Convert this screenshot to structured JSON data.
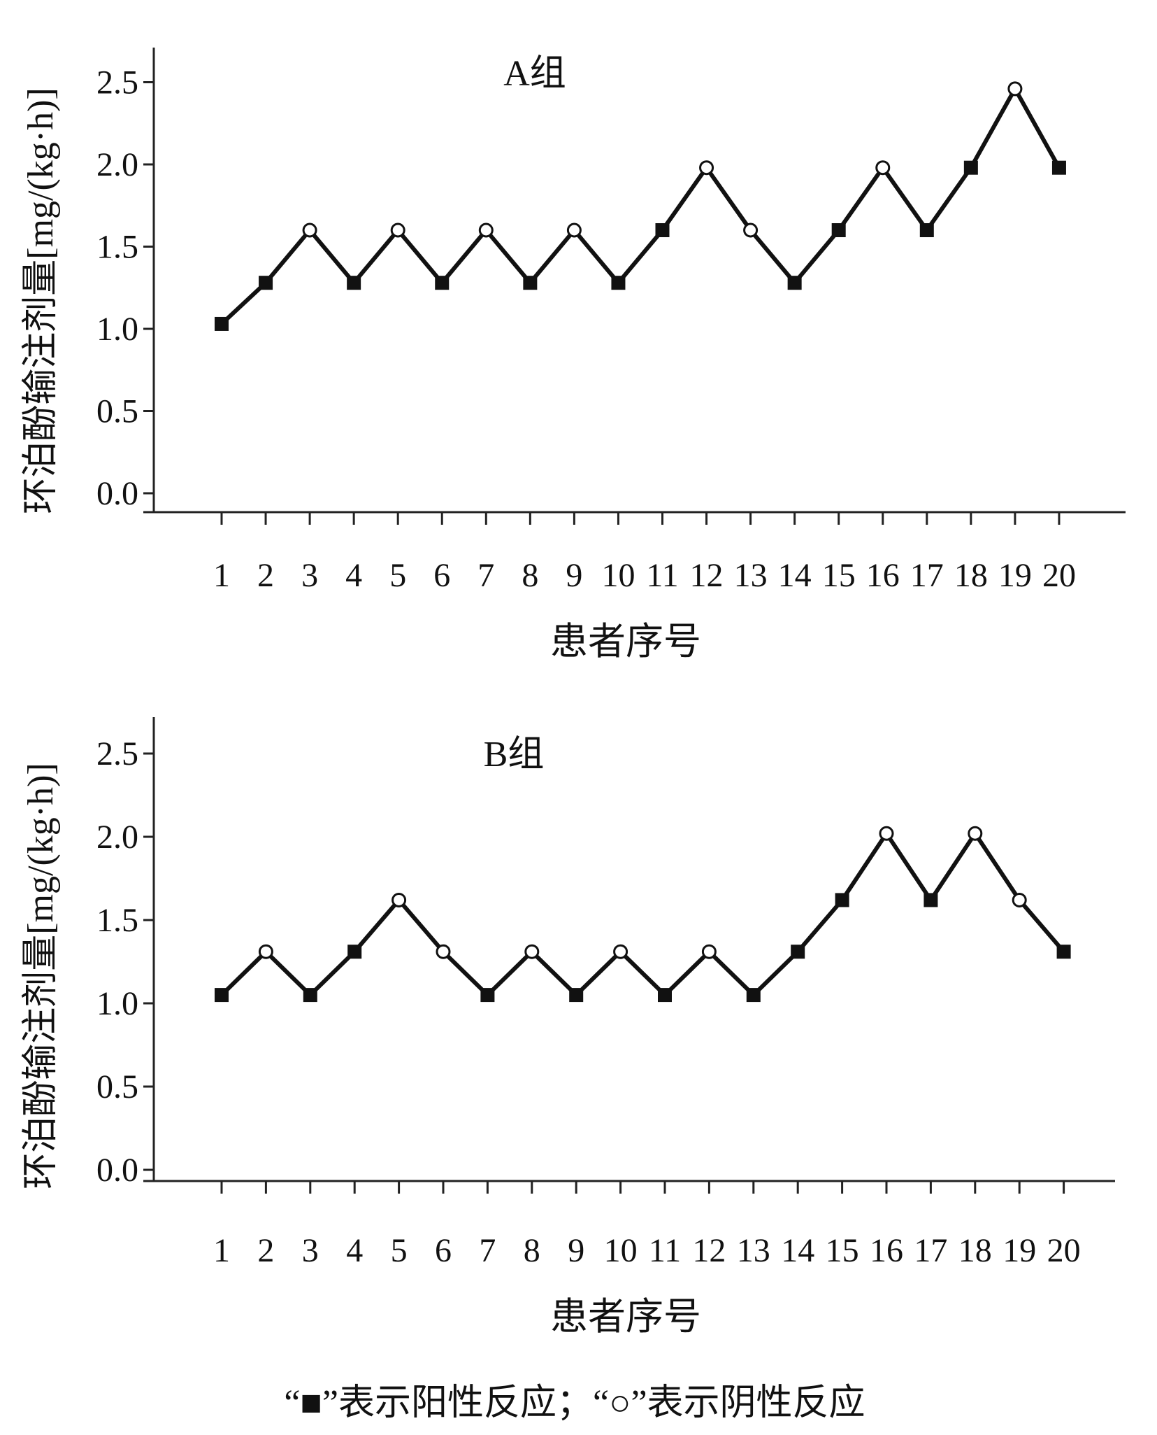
{
  "chart_data": [
    {
      "type": "line",
      "title": "A组",
      "xlabel": "患者序号",
      "ylabel": "环泊酚输注剂量[mg/(kg·h)]",
      "categories": [
        "1",
        "2",
        "3",
        "4",
        "5",
        "6",
        "7",
        "8",
        "9",
        "10",
        "11",
        "12",
        "13",
        "14",
        "15",
        "16",
        "17",
        "18",
        "19",
        "20"
      ],
      "yticks": [
        "0.0",
        "0.5",
        "1.0",
        "1.5",
        "2.0",
        "2.5"
      ],
      "ylim": [
        0,
        2.6
      ],
      "values": [
        1.03,
        1.28,
        1.6,
        1.28,
        1.6,
        1.28,
        1.6,
        1.28,
        1.6,
        1.28,
        1.6,
        1.98,
        1.6,
        1.28,
        1.6,
        1.98,
        1.6,
        1.98,
        2.46,
        1.98
      ],
      "response": [
        "pos",
        "pos",
        "neg",
        "pos",
        "neg",
        "pos",
        "neg",
        "pos",
        "neg",
        "pos",
        "pos",
        "neg",
        "neg",
        "pos",
        "pos",
        "neg",
        "pos",
        "pos",
        "neg",
        "pos"
      ]
    },
    {
      "type": "line",
      "title": "B组",
      "xlabel": "患者序号",
      "ylabel": "环泊酚输注剂量[mg/(kg·h)]",
      "categories": [
        "1",
        "2",
        "3",
        "4",
        "5",
        "6",
        "7",
        "8",
        "9",
        "10",
        "11",
        "12",
        "13",
        "14",
        "15",
        "16",
        "17",
        "18",
        "19",
        "20"
      ],
      "yticks": [
        "0.0",
        "0.5",
        "1.0",
        "1.5",
        "2.0",
        "2.5"
      ],
      "ylim": [
        0,
        2.6
      ],
      "values": [
        1.05,
        1.31,
        1.05,
        1.31,
        1.62,
        1.31,
        1.05,
        1.31,
        1.05,
        1.31,
        1.05,
        1.31,
        1.05,
        1.31,
        1.62,
        2.02,
        1.62,
        2.02,
        1.62,
        1.31
      ],
      "response": [
        "pos",
        "neg",
        "pos",
        "pos",
        "neg",
        "neg",
        "pos",
        "neg",
        "pos",
        "neg",
        "pos",
        "neg",
        "pos",
        "pos",
        "pos",
        "neg",
        "pos",
        "neg",
        "neg",
        "pos"
      ]
    }
  ],
  "legend": {
    "text": "“■”表示阳性反应；“○”表示阴性反应"
  }
}
